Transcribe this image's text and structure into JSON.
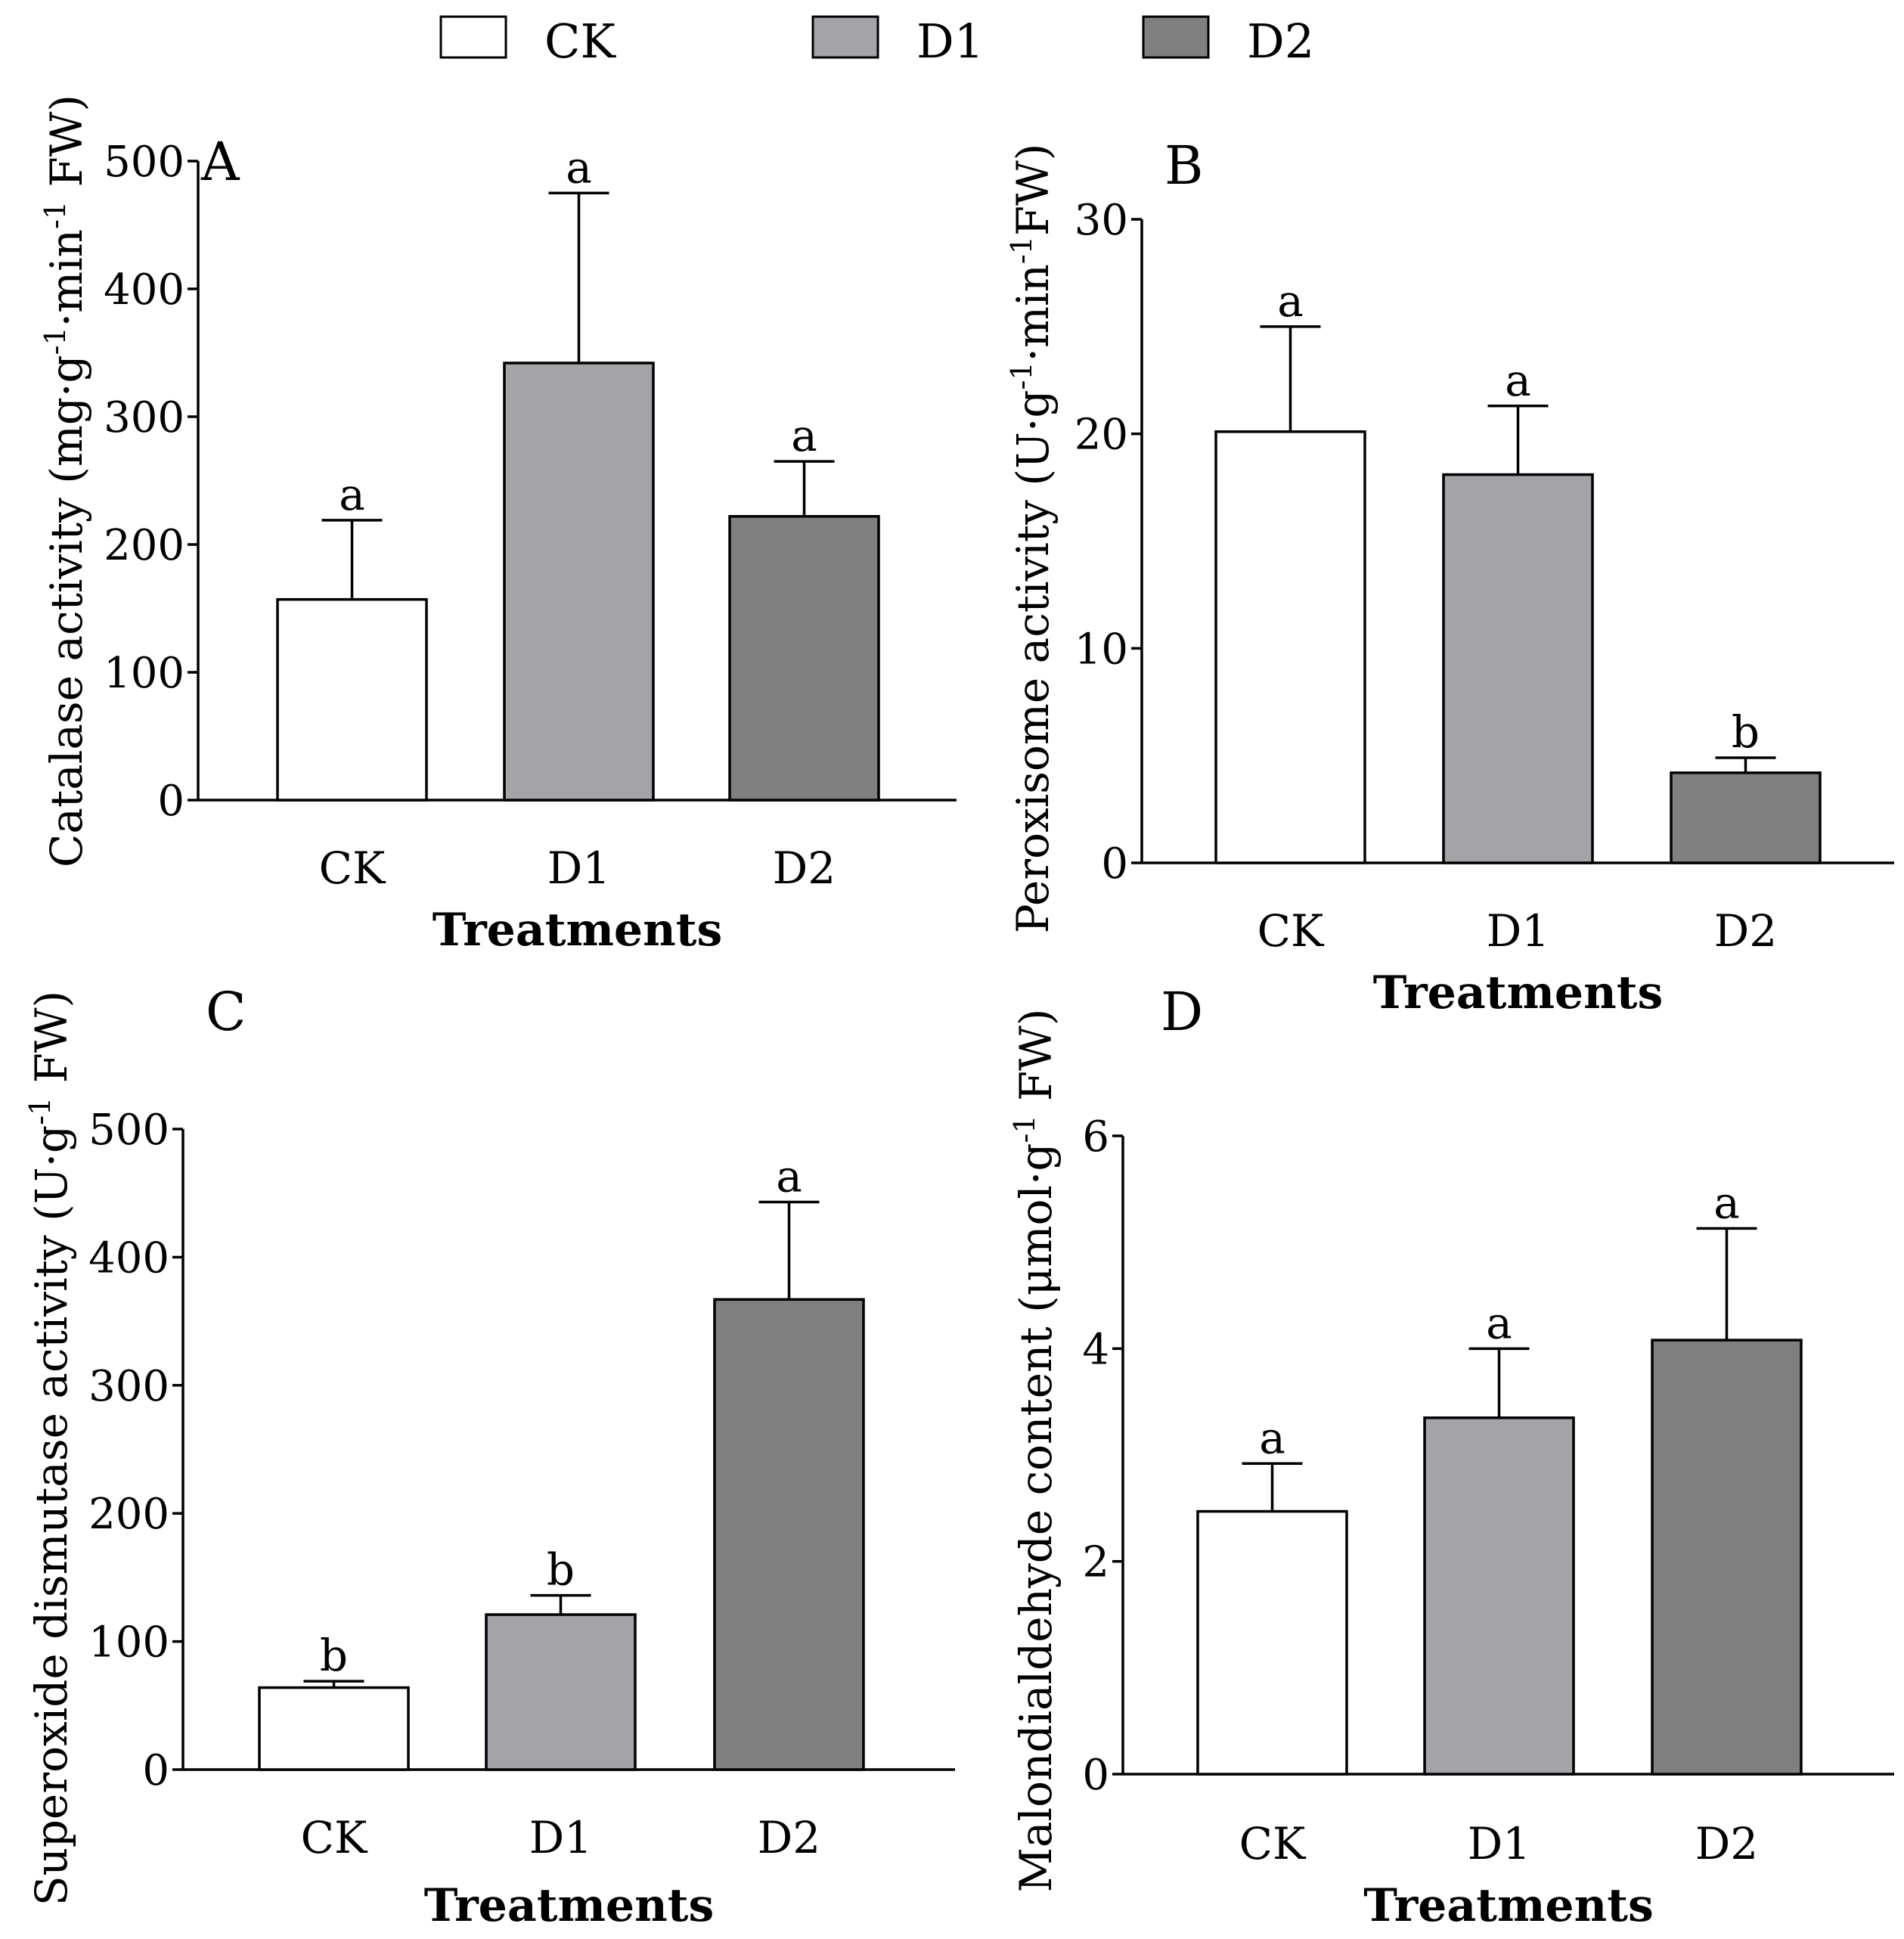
{
  "legend": {
    "items": [
      {
        "label": "CK",
        "color": "#ffffff"
      },
      {
        "label": "D1",
        "color": "#a3a3a8"
      },
      {
        "label": "D2",
        "color": "#808080"
      }
    ]
  },
  "chart_data": [
    {
      "panel": "A",
      "type": "bar",
      "categories": [
        "CK",
        "D1",
        "D2"
      ],
      "values": [
        157,
        342,
        222
      ],
      "errors": [
        62,
        133,
        43
      ],
      "letters": [
        "a",
        "a",
        "a"
      ],
      "xlabel": "Treatments",
      "ylabel_parts": [
        {
          "t": "Catalase activity (mg·g"
        },
        {
          "t": "-1",
          "sup": true
        },
        {
          "t": "·min"
        },
        {
          "t": "-1",
          "sup": true
        },
        {
          "t": " FW)"
        }
      ],
      "ylim": [
        0,
        500
      ],
      "yticks": [
        0,
        100,
        200,
        300,
        400,
        500
      ]
    },
    {
      "panel": "B",
      "type": "bar",
      "categories": [
        "CK",
        "D1",
        "D2"
      ],
      "values": [
        20.1,
        18.1,
        4.2
      ],
      "errors": [
        4.9,
        3.2,
        0.7
      ],
      "letters": [
        "a",
        "a",
        "b"
      ],
      "xlabel": "Treatments",
      "ylabel_parts": [
        {
          "t": "Peroxisome activity (U·g"
        },
        {
          "t": "-1",
          "sup": true
        },
        {
          "t": "·min"
        },
        {
          "t": "-1",
          "sup": true
        },
        {
          "t": "FW)"
        }
      ],
      "ylim": [
        0,
        30
      ],
      "yticks": [
        0,
        10,
        20,
        30
      ]
    },
    {
      "panel": "C",
      "type": "bar",
      "categories": [
        "CK",
        "D1",
        "D2"
      ],
      "values": [
        64,
        121,
        367
      ],
      "errors": [
        5,
        15,
        76
      ],
      "letters": [
        "b",
        "b",
        "a"
      ],
      "xlabel": "Treatments",
      "ylabel_parts": [
        {
          "t": "Superoxide dismutase activity (U·g"
        },
        {
          "t": "-1",
          "sup": true
        },
        {
          "t": " FW)"
        }
      ],
      "ylim": [
        0,
        500
      ],
      "yticks": [
        0,
        100,
        200,
        300,
        400,
        500
      ]
    },
    {
      "panel": "D",
      "type": "bar",
      "categories": [
        "CK",
        "D1",
        "D2"
      ],
      "values": [
        2.47,
        3.35,
        4.08
      ],
      "errors": [
        0.45,
        0.65,
        1.05
      ],
      "letters": [
        "a",
        "a",
        "a"
      ],
      "xlabel": "Treatments",
      "ylabel_parts": [
        {
          "t": "Malondialdehyde content (μmol·g"
        },
        {
          "t": "-1",
          "sup": true
        },
        {
          "t": " FW)"
        }
      ],
      "ylim": [
        0,
        6
      ],
      "yticks": [
        0,
        2,
        4,
        6
      ]
    }
  ]
}
